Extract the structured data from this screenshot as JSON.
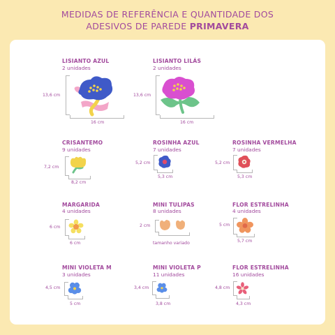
{
  "header": {
    "line1": "MEDIDAS DE REFERÊNCIA E QUANTIDADE DOS",
    "line2_prefix": "ADESIVOS DE PAREDE ",
    "line2_strong": "PRIMAVERA"
  },
  "items": [
    {
      "name": "LISIANTO AZUL",
      "count": "2 unidades",
      "height": "13,6 cm",
      "width": "16 cm",
      "icon": "blue-lisianthus-icon",
      "color": "#3f5ac8"
    },
    {
      "name": "LISIANTO LILÁS",
      "count": "2 unidades",
      "height": "13,6 cm",
      "width": "16 cm",
      "icon": "lilac-lisianthus-icon",
      "color": "#d94fd0"
    },
    {
      "name": "CRISANTEMO",
      "count": "9 unidades",
      "height": "7,2 cm",
      "width": "8,2 cm",
      "icon": "yellow-chrysanthemum-icon",
      "color": "#f2d34b"
    },
    {
      "name": "ROSINHA AZUL",
      "count": "7 unidades",
      "height": "5,2 cm",
      "width": "5,3 cm",
      "icon": "blue-rose-icon",
      "color": "#3f5ac8"
    },
    {
      "name": "ROSINHA VERMELHA",
      "count": "7 unidades",
      "height": "5,2 cm",
      "width": "5,3 cm",
      "icon": "red-rose-icon",
      "color": "#e0505a"
    },
    {
      "name": "MARGARIDA",
      "count": "4 unidades",
      "height": "6 cm",
      "width": "6 cm",
      "icon": "daisy-icon",
      "color": "#f5df60"
    },
    {
      "name": "MINI TULIPAS",
      "count": "8 unidades",
      "height": "2 cm",
      "width": "tamanho variado",
      "icon": "mini-tulips-icon",
      "color": "#f0b07a"
    },
    {
      "name": "FLOR ESTRELINHA",
      "count": "4 unidades",
      "height": "5 cm",
      "width": "5,7 cm",
      "icon": "star-flower-icon",
      "color": "#f0955e"
    },
    {
      "name": "MINI VIOLETA M",
      "count": "3 unidades",
      "height": "4,5 cm",
      "width": "5 cm",
      "icon": "violet-m-icon",
      "color": "#5a8ee8"
    },
    {
      "name": "MINI VIOLETA P",
      "count": "11 unidades",
      "height": "3,4 cm",
      "width": "3,8 cm",
      "icon": "violet-p-icon",
      "color": "#5a8ee8"
    },
    {
      "name": "FLOR ESTRELINHA",
      "count": "16 unidades",
      "height": "4,8 cm",
      "width": "4,3 cm",
      "icon": "small-star-flower-icon",
      "color": "#e8607a"
    }
  ]
}
